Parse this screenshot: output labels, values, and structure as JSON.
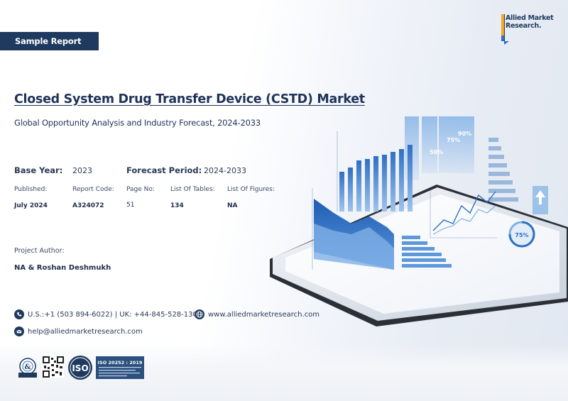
{
  "badge": "Sample Report",
  "logo": {
    "text": "Allied Market Research."
  },
  "title": "Closed System Drug Transfer Device (CSTD)  Market",
  "subtitle": "Global Opportunity Analysis and Industry Forecast, 2024-2033",
  "base_year": {
    "label": "Base Year:",
    "value": "2023"
  },
  "forecast_period": {
    "label": "Forecast Period:",
    "value": "2024-2033"
  },
  "meta": {
    "published_label": "Published:",
    "published_value": "July 2024",
    "code_label": "Report Code:",
    "code_value": "A324072",
    "pages_label": "Page No:",
    "pages_value": "51",
    "tables_label": "List Of Tables:",
    "tables_value": "134",
    "figures_label": "List Of Figures:",
    "figures_value": "NA"
  },
  "author": {
    "label": "Project Author:",
    "value": "NA & Roshan Deshmukh"
  },
  "contact": {
    "phone": "U.S.:+1 (503 894-6022) | UK: +44-845-528-1300",
    "website": "www.alliedmarketresearch.com",
    "email": "help@alliedmarketresearch.com"
  },
  "certifications": {
    "iso_label": "ISO",
    "iso_standard": "ISO 20252 : 2019"
  },
  "illustration": {
    "percent_labels": [
      "50%",
      "75%",
      "90%"
    ],
    "gauge_label": "75%",
    "accent": "#2f6fc4"
  },
  "colors": {
    "navy": "#1f3a5f",
    "blue": "#2f6fc4",
    "light_blue": "#7fb0e6"
  }
}
